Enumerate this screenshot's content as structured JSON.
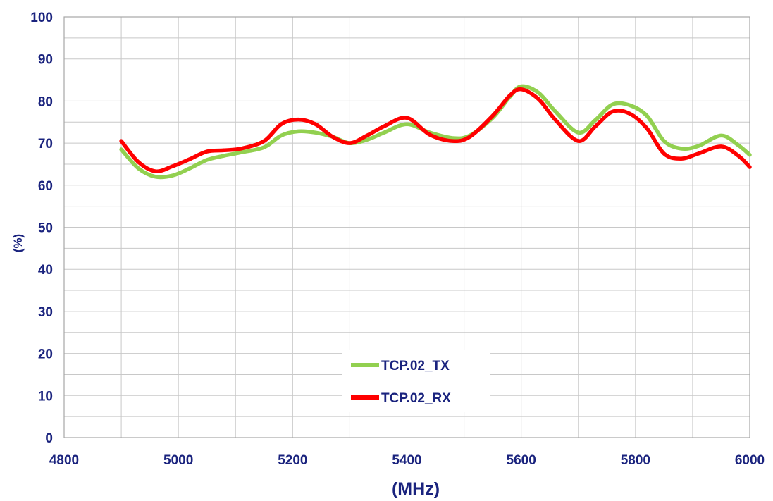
{
  "chart_data": {
    "type": "line",
    "xlabel": "(MHz)",
    "ylabel": "(%)",
    "xlim": [
      4800,
      6000
    ],
    "ylim": [
      0,
      100
    ],
    "x_ticks": [
      "4800",
      "5000",
      "5200",
      "5400",
      "5600",
      "5800",
      "6000"
    ],
    "y_ticks": [
      "0",
      "10",
      "20",
      "30",
      "40",
      "50",
      "60",
      "70",
      "80",
      "90",
      "100"
    ],
    "x_minor_step": 100,
    "y_minor_step": 5,
    "grid": true,
    "legend_position": "bottom-center",
    "series": [
      {
        "name": "TCP.02_TX",
        "color": "#92d050",
        "x": [
          4900,
          4930,
          4960,
          4990,
          5020,
          5050,
          5080,
          5110,
          5150,
          5180,
          5210,
          5240,
          5270,
          5300,
          5330,
          5360,
          5400,
          5440,
          5480,
          5510,
          5550,
          5580,
          5600,
          5630,
          5660,
          5700,
          5730,
          5760,
          5790,
          5820,
          5850,
          5880,
          5910,
          5950,
          5980,
          6000
        ],
        "y": [
          68.5,
          64,
          62,
          62.3,
          64,
          66,
          67,
          67.8,
          69,
          71.8,
          72.8,
          72.5,
          71.5,
          70,
          70.8,
          72.5,
          74.5,
          72.5,
          71.2,
          71.8,
          76,
          81,
          83.5,
          82,
          77.5,
          72.5,
          75.5,
          79.2,
          79,
          76.5,
          70.5,
          68.7,
          69.3,
          71.8,
          69.5,
          67.2
        ]
      },
      {
        "name": "TCP.02_RX",
        "color": "#ff0000",
        "x": [
          4900,
          4930,
          4960,
          4990,
          5020,
          5050,
          5080,
          5110,
          5150,
          5180,
          5210,
          5240,
          5270,
          5300,
          5330,
          5360,
          5400,
          5440,
          5480,
          5510,
          5550,
          5580,
          5600,
          5630,
          5660,
          5700,
          5730,
          5760,
          5790,
          5820,
          5850,
          5880,
          5910,
          5950,
          5980,
          6000
        ],
        "y": [
          70.5,
          65.5,
          63.3,
          64.5,
          66.2,
          68,
          68.3,
          68.7,
          70.5,
          74.5,
          75.6,
          74.5,
          71.5,
          70,
          71.8,
          74,
          76,
          72,
          70.5,
          71.5,
          76.5,
          81.3,
          82.8,
          80.5,
          75.5,
          70.5,
          74,
          77.5,
          77,
          73.5,
          67.5,
          66.3,
          67.5,
          69.2,
          67,
          64.3
        ]
      }
    ]
  }
}
